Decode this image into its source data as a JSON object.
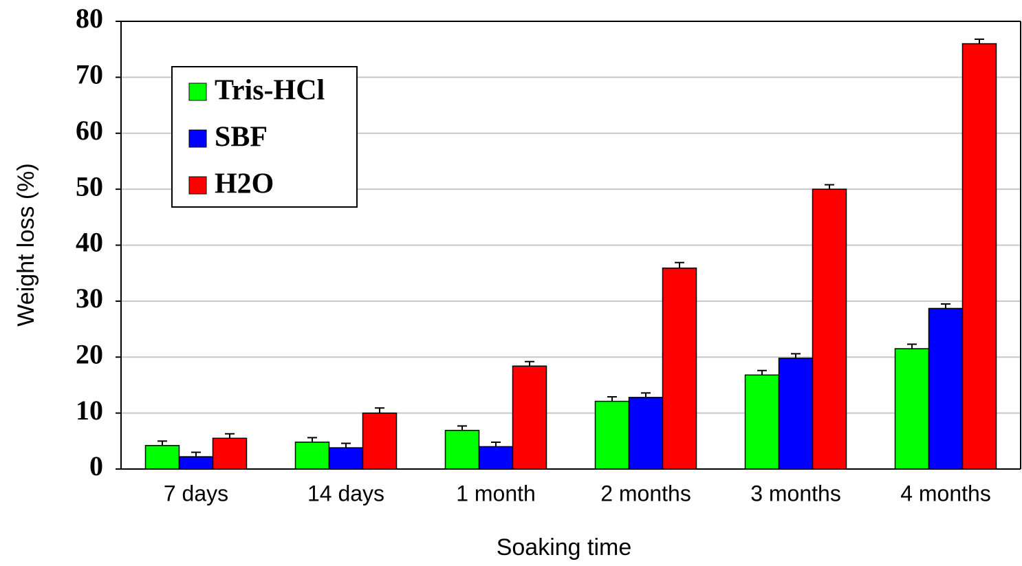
{
  "chart_data": {
    "type": "bar",
    "x_label": "Soaking time",
    "y_label": "Weight loss (%)",
    "categories": [
      "7 days",
      "14 days",
      "1 month",
      "2 months",
      "3 months",
      "4 months"
    ],
    "series": [
      {
        "name": "Tris-HCl",
        "color": "#00ff00",
        "values": [
          4.2,
          4.8,
          6.9,
          12.1,
          16.8,
          21.5
        ],
        "errors": [
          0.8,
          0.8,
          0.8,
          0.8,
          0.8,
          0.8
        ]
      },
      {
        "name": "SBF",
        "color": "#0000ff",
        "values": [
          2.2,
          3.8,
          4.0,
          12.8,
          19.8,
          28.7
        ],
        "errors": [
          0.8,
          0.8,
          0.8,
          0.8,
          0.8,
          0.8
        ]
      },
      {
        "name": "H2O",
        "color": "#ff0000",
        "values": [
          5.5,
          10.0,
          18.4,
          35.9,
          50.0,
          76.0
        ],
        "errors": [
          0.8,
          0.9,
          0.8,
          1.0,
          0.8,
          0.8
        ]
      }
    ],
    "ylim": [
      0,
      80
    ],
    "yticks": [
      0,
      10,
      20,
      30,
      40,
      50,
      60,
      70,
      80
    ],
    "grid": true,
    "legend": "upper left"
  }
}
